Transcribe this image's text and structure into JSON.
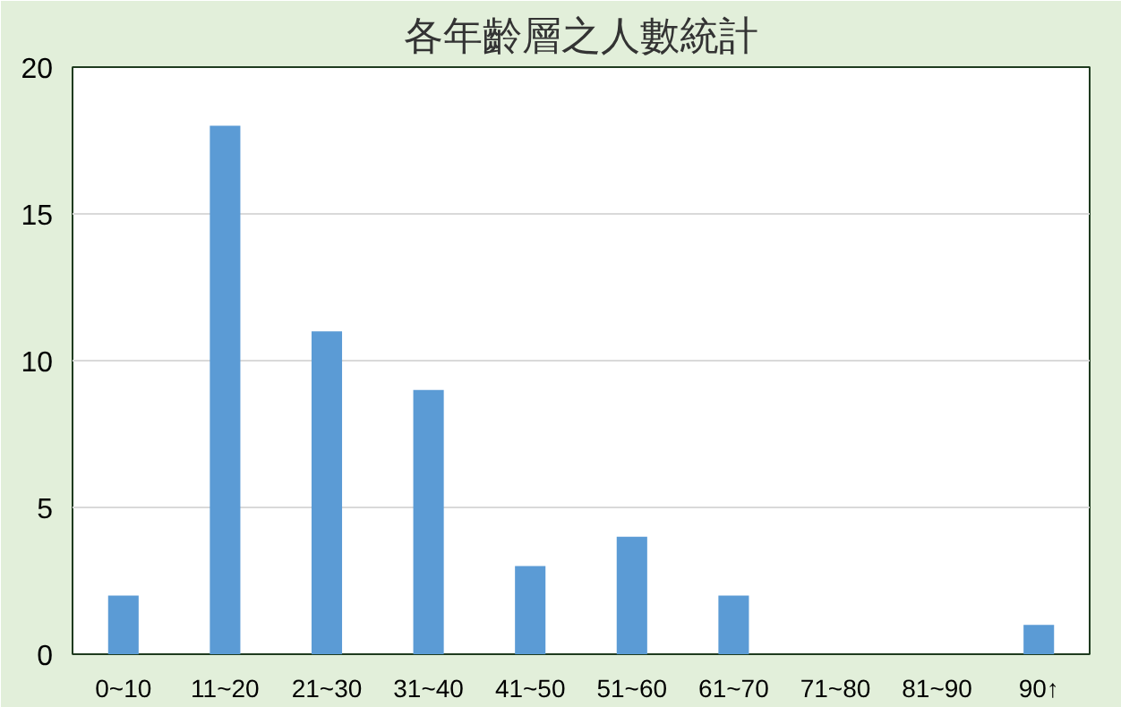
{
  "chart_data": {
    "type": "bar",
    "title": "各年齡層之人數統計",
    "categories": [
      "0~10",
      "11~20",
      "21~30",
      "31~40",
      "41~50",
      "51~60",
      "61~70",
      "71~80",
      "81~90",
      "90↑"
    ],
    "values": [
      2,
      18,
      11,
      9,
      3,
      4,
      2,
      0,
      0,
      1
    ],
    "color": "#5b9bd5",
    "ylim": [
      0,
      20
    ],
    "yticks": [
      0,
      5,
      10,
      15,
      20
    ],
    "grid": "y"
  }
}
